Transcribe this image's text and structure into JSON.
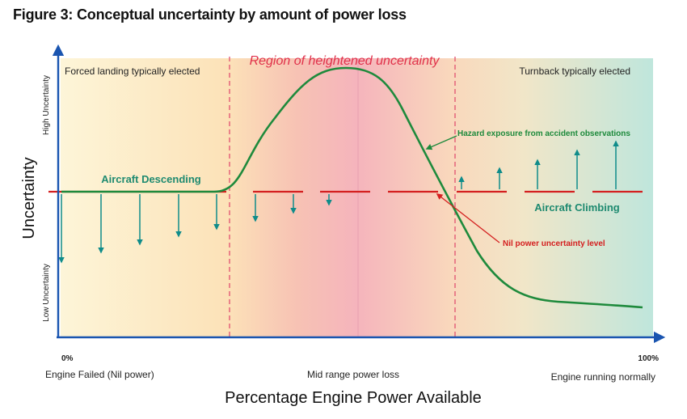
{
  "figure_title": "Figure 3: Conceptual uncertainty by amount of power loss",
  "regions": {
    "left": "Forced landing typically elected",
    "middle": "Region of heightened uncertainty",
    "right": "Turnback typically elected"
  },
  "y_axis": {
    "label": "Uncertainty",
    "high": "High Uncertainty",
    "low": "Low Uncertainty"
  },
  "x_axis": {
    "label": "Percentage Engine Power Available",
    "tick_start": "0%",
    "tick_end": "100%",
    "left_caption": "Engine Failed (Nil power)",
    "middle_caption": "Mid range power loss",
    "right_caption": "Engine running normally"
  },
  "annotations": {
    "descending": "Aircraft Descending",
    "climbing": "Aircraft Climbing",
    "hazard": "Hazard exposure from accident observations",
    "nil_level": "Nil power uncertainty level"
  },
  "colors": {
    "curve": "#1e8a3c",
    "nil_line": "#d42020",
    "arrows": "#0f8c8a",
    "axis": "#1a55b0",
    "region_title": "#e0304a",
    "divider": "#e05070"
  }
}
